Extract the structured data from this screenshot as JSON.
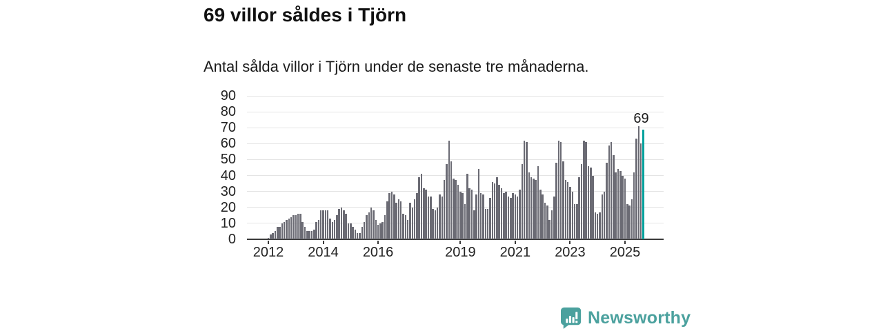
{
  "header": {
    "title": "69 villor såldes i Tjörn",
    "subtitle": "Antal sålda villor i Tjörn under de senaste tre månaderna."
  },
  "chart_data": {
    "type": "bar",
    "title": "69 villor såldes i Tjörn",
    "subtitle": "Antal sålda villor i Tjörn under de senaste tre månaderna.",
    "frequency": "monthly",
    "x_start": "2012-01",
    "x_end": "2025-09",
    "ylim": [
      0,
      90
    ],
    "grid": true,
    "y_ticks": [
      0,
      10,
      20,
      30,
      40,
      50,
      60,
      70,
      80,
      90
    ],
    "x_ticks": [
      {
        "label": "2012",
        "month_index": 0
      },
      {
        "label": "2014",
        "month_index": 24
      },
      {
        "label": "2016",
        "month_index": 48
      },
      {
        "label": "2019",
        "month_index": 84
      },
      {
        "label": "2021",
        "month_index": 108
      },
      {
        "label": "2023",
        "month_index": 132
      },
      {
        "label": "2025",
        "month_index": 156
      }
    ],
    "values": [
      1,
      3,
      4,
      5,
      8,
      8,
      10,
      11,
      12,
      13,
      14,
      15,
      15,
      16,
      16,
      11,
      8,
      5,
      5,
      5,
      6,
      11,
      12,
      18,
      18,
      18,
      18,
      13,
      11,
      12,
      15,
      19,
      20,
      18,
      16,
      10,
      10,
      8,
      6,
      4,
      4,
      8,
      11,
      15,
      17,
      20,
      18,
      12,
      9,
      10,
      11,
      15,
      24,
      29,
      30,
      28,
      23,
      25,
      24,
      16,
      15,
      12,
      23,
      20,
      25,
      29,
      39,
      41,
      32,
      31,
      27,
      27,
      19,
      18,
      20,
      28,
      27,
      37,
      47,
      62,
      49,
      38,
      37,
      34,
      30,
      29,
      22,
      41,
      32,
      31,
      18,
      28,
      44,
      29,
      28,
      19,
      19,
      26,
      36,
      35,
      39,
      34,
      32,
      29,
      30,
      27,
      26,
      29,
      28,
      27,
      31,
      47,
      62,
      61,
      42,
      39,
      38,
      37,
      46,
      31,
      28,
      23,
      21,
      12,
      18,
      27,
      48,
      62,
      61,
      49,
      37,
      36,
      33,
      30,
      22,
      22,
      39,
      47,
      62,
      61,
      46,
      45,
      40,
      17,
      16,
      17,
      28,
      30,
      48,
      59,
      61,
      53,
      42,
      44,
      43,
      40,
      38,
      22,
      21,
      25,
      42,
      63,
      71,
      60,
      69
    ],
    "highlight_index": 164,
    "annotation": {
      "text": "69",
      "index": 164
    },
    "colors": {
      "bar": "#6b6b74",
      "highlight": "#00a19c",
      "grid": "#e4e4e4",
      "axis": "#3a3a3a",
      "text": "#1a1a1a"
    }
  },
  "footer": {
    "brand": "Newsworthy",
    "brand_color": "#4ba19e"
  }
}
